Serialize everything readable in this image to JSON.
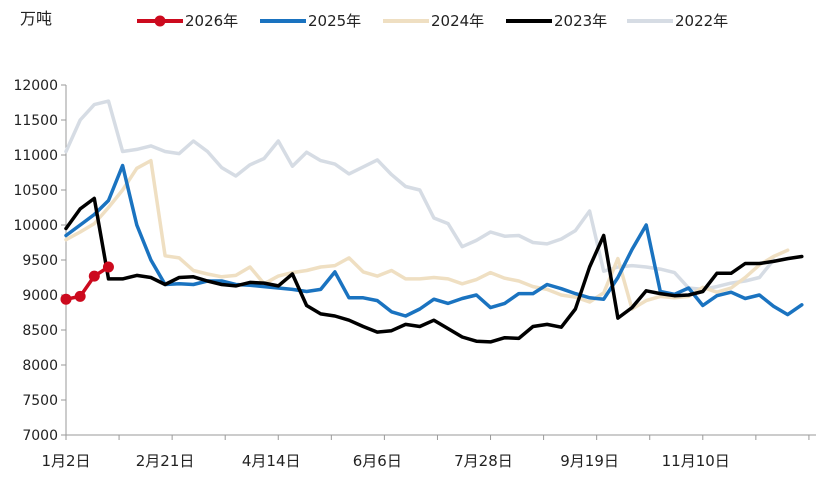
{
  "chart_data": {
    "type": "line",
    "unit_label": "万吨",
    "ylim": [
      7000,
      12000
    ],
    "yticks": [
      7000,
      7500,
      8000,
      8500,
      9000,
      9500,
      10000,
      10500,
      11000,
      11500,
      12000
    ],
    "xlim": [
      0,
      53
    ],
    "xtick_labels": [
      {
        "label": "1月2日",
        "x": 0
      },
      {
        "label": "2月21日",
        "x": 7
      },
      {
        "label": "4月14日",
        "x": 14.5
      },
      {
        "label": "6月6日",
        "x": 22
      },
      {
        "label": "7月28日",
        "x": 29.5
      },
      {
        "label": "9月19日",
        "x": 37
      },
      {
        "label": "11月10日",
        "x": 44.5
      }
    ],
    "grid": false,
    "legend_position": "top",
    "series": [
      {
        "name": "2022年",
        "color": "#d6dce4",
        "marker": false,
        "values": [
          11050,
          11500,
          11720,
          11770,
          11050,
          11080,
          11130,
          11050,
          11020,
          11200,
          11050,
          10820,
          10700,
          10860,
          10950,
          11200,
          10840,
          11040,
          10920,
          10870,
          10730,
          10830,
          10930,
          10720,
          10550,
          10500,
          10100,
          10020,
          9690,
          9780,
          9900,
          9840,
          9850,
          9750,
          9730,
          9800,
          9920,
          10200,
          9340,
          9400,
          9420,
          9400,
          9370,
          9320,
          9100,
          9080,
          9120,
          9170,
          9200,
          9250,
          9500
        ]
      },
      {
        "name": "2024年",
        "color": "#efdfc2",
        "marker": false,
        "values": [
          9790,
          9900,
          10020,
          10250,
          10500,
          10810,
          10920,
          9560,
          9530,
          9350,
          9300,
          9260,
          9280,
          9400,
          9160,
          9270,
          9320,
          9350,
          9400,
          9420,
          9530,
          9330,
          9270,
          9350,
          9230,
          9230,
          9250,
          9230,
          9160,
          9220,
          9320,
          9240,
          9200,
          9120,
          9080,
          9000,
          8970,
          8900,
          9030,
          9520,
          8800,
          8920,
          8980,
          8960,
          8980,
          9110,
          9040,
          9100,
          9250,
          9430,
          9550,
          9640
        ]
      },
      {
        "name": "2025年",
        "color": "#1a73c0",
        "marker": false,
        "values": [
          9850,
          10000,
          10150,
          10350,
          10850,
          10000,
          9500,
          9150,
          9160,
          9150,
          9200,
          9200,
          9150,
          9140,
          9120,
          9100,
          9080,
          9050,
          9080,
          9330,
          8960,
          8960,
          8920,
          8760,
          8700,
          8800,
          8940,
          8880,
          8950,
          9000,
          8820,
          8880,
          9020,
          9020,
          9150,
          9090,
          9020,
          8960,
          8940,
          9250,
          9650,
          10000,
          9050,
          9010,
          9100,
          8850,
          8990,
          9040,
          8950,
          9000,
          8840,
          8720,
          8860
        ]
      },
      {
        "name": "2023年",
        "color": "#000000",
        "marker": false,
        "values": [
          9950,
          10230,
          10380,
          9230,
          9230,
          9280,
          9250,
          9150,
          9250,
          9260,
          9200,
          9150,
          9130,
          9180,
          9170,
          9130,
          9300,
          8850,
          8730,
          8700,
          8640,
          8550,
          8470,
          8490,
          8580,
          8550,
          8640,
          8520,
          8400,
          8340,
          8330,
          8390,
          8380,
          8550,
          8580,
          8540,
          8800,
          9400,
          9850,
          8670,
          8820,
          9060,
          9020,
          8990,
          9000,
          9050,
          9310,
          9310,
          9450,
          9450,
          9480,
          9520,
          9550
        ]
      },
      {
        "name": "2026年",
        "color": "#cc0a1e",
        "marker": true,
        "values": [
          8940,
          8980,
          9270,
          9400
        ]
      }
    ]
  }
}
